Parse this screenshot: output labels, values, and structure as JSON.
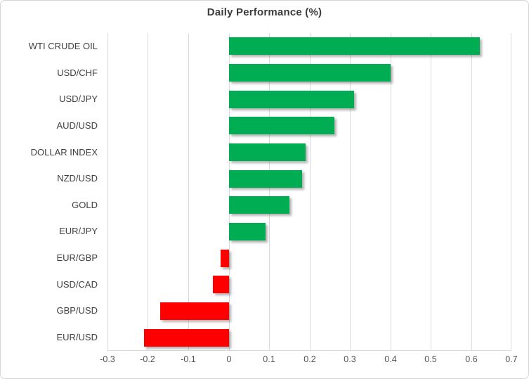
{
  "title": "Daily Performance (%)",
  "chart_data": {
    "type": "bar",
    "orientation": "horizontal",
    "title": "Daily Performance (%)",
    "categories": [
      "WTI CRUDE OIL",
      "USD/CHF",
      "USD/JPY",
      "AUD/USD",
      "DOLLAR INDEX",
      "NZD/USD",
      "GOLD",
      "EUR/JPY",
      "EUR/GBP",
      "USD/CAD",
      "GBP/USD",
      "EUR/USD"
    ],
    "values": [
      0.62,
      0.4,
      0.31,
      0.26,
      0.19,
      0.18,
      0.15,
      0.09,
      -0.02,
      -0.04,
      -0.17,
      -0.21
    ],
    "xlabel": "",
    "ylabel": "",
    "xlim": [
      -0.3,
      0.7
    ],
    "xticks": [
      -0.3,
      -0.2,
      -0.1,
      0,
      0.1,
      0.2,
      0.3,
      0.4,
      0.5,
      0.6,
      0.7
    ],
    "xtick_labels": [
      "-0.3",
      "-0.2",
      "-0.1",
      "0",
      "0.1",
      "0.2",
      "0.3",
      "0.4",
      "0.5",
      "0.6",
      "0.7"
    ],
    "grid": true,
    "legend": "none"
  },
  "colors": {
    "positive_bar": "#00ad52",
    "negative_bar": "#ff0000",
    "gridline": "#d9d9d9",
    "title_text": "#3b3b3b",
    "category_text": "#404040",
    "tick_text": "#555555",
    "frame_border": "#d5d5d5",
    "background": "#ffffff"
  }
}
